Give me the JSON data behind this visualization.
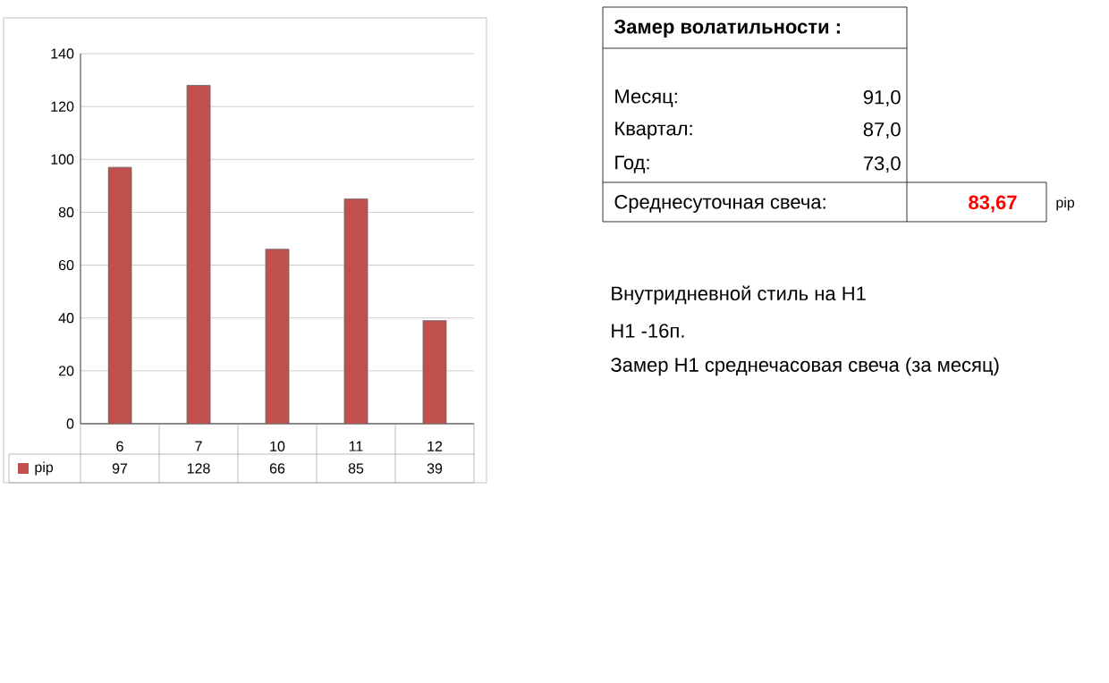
{
  "chart_data": {
    "type": "bar",
    "categories": [
      "6",
      "7",
      "10",
      "11",
      "12"
    ],
    "series": [
      {
        "name": "pip",
        "color": "#c0504d",
        "values": [
          97,
          128,
          66,
          85,
          39
        ]
      }
    ],
    "ylim": [
      0,
      140
    ],
    "yticks": [
      0,
      20,
      40,
      60,
      80,
      100,
      120,
      140
    ],
    "grid": "y",
    "legend": "bottom",
    "value_labels": [
      "97",
      "128",
      "66",
      "85",
      "39"
    ],
    "annotations": [
      "Замер  волатильности  :",
      "Месяц:",
      "91,0",
      "Квартал:",
      "87,0",
      "Год:",
      "73,0",
      "Среднесуточная свеча:",
      "83,67",
      "pip",
      "Внутридневной стиль на H1",
      "H1 -16п.",
      "Замер H1 среднечасовая свеча (за месяц)"
    ]
  }
}
